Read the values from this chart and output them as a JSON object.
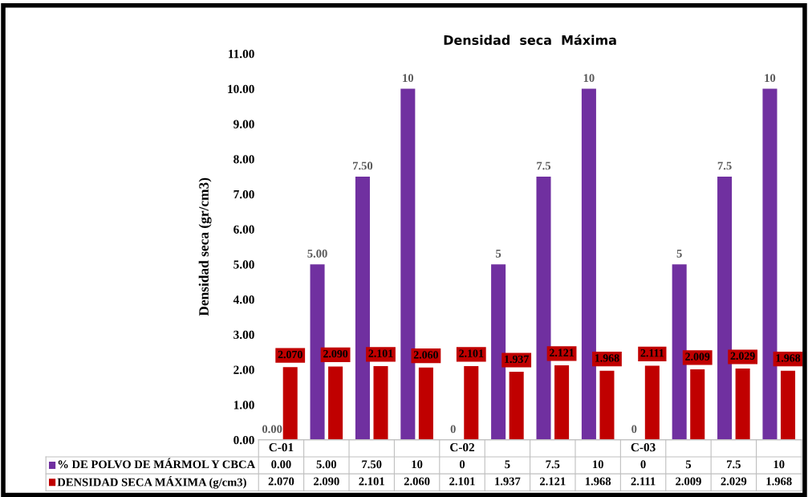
{
  "chart_data": {
    "type": "bar",
    "title": "Densidad  seca  Máxima",
    "ylabel": "Densidad seca (gr/cm3)",
    "categories": [
      "C-01",
      null,
      null,
      null,
      "C-02",
      null,
      null,
      null,
      "C-03",
      null,
      null,
      null
    ],
    "series": [
      {
        "name": "% DE POLVO DE MÁRMOL Y CBCA",
        "color": "#7030a0",
        "values": [
          0,
          5,
          7.5,
          10,
          0,
          5,
          7.5,
          10,
          0,
          5,
          7.5,
          10
        ],
        "value_labels": [
          "0.00",
          "5.00",
          "7.50",
          "10",
          "0",
          "5",
          "7.5",
          "10",
          "0",
          "5",
          "7.5",
          "10"
        ]
      },
      {
        "name": "DENSIDAD SECA MÁXIMA (g/cm3)",
        "color": "#c00000",
        "values": [
          2.07,
          2.09,
          2.101,
          2.06,
          2.101,
          1.937,
          2.121,
          1.968,
          2.111,
          2.009,
          2.029,
          1.968
        ],
        "value_labels": [
          "2.070",
          "2.090",
          "2.101",
          "2.060",
          "2.101",
          "1.937",
          "2.121",
          "1.968",
          "2.111",
          "2.009",
          "2.029",
          "1.968"
        ]
      }
    ],
    "ylim": [
      0,
      11
    ],
    "yticks": [
      {
        "value": 0,
        "label": "0.00"
      },
      {
        "value": 1,
        "label": "1.00"
      },
      {
        "value": 2,
        "label": "2.00"
      },
      {
        "value": 3,
        "label": "3.00"
      },
      {
        "value": 4,
        "label": "4.00"
      },
      {
        "value": 5,
        "label": "5.00"
      },
      {
        "value": 6,
        "label": "6.00"
      },
      {
        "value": 7,
        "label": "7.00"
      },
      {
        "value": 8,
        "label": "8.00"
      },
      {
        "value": 9,
        "label": "9.00"
      },
      {
        "value": 10,
        "label": "10.00"
      },
      {
        "value": 11,
        "label": "11.00"
      }
    ],
    "grid": false,
    "legend": "bottom"
  }
}
